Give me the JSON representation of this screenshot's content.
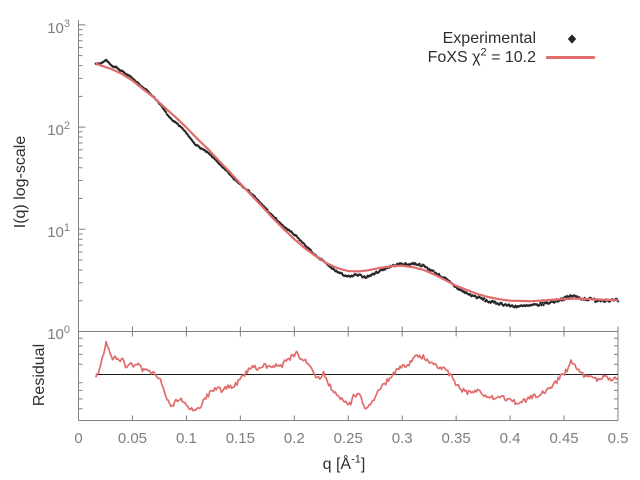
{
  "figure": {
    "background": "#ffffff",
    "main_axis": {
      "ylabel": "I(q) log-scale",
      "y_ticks": [
        {
          "base": "10",
          "exp": "3"
        },
        {
          "base": "10",
          "exp": "2"
        },
        {
          "base": "10",
          "exp": "1"
        },
        {
          "base": "10",
          "exp": "0"
        }
      ]
    },
    "residual_axis": {
      "ylabel": "Residual"
    },
    "x_axis": {
      "ticks": [
        "0",
        "0.05",
        "0.1",
        "0.15",
        "0.2",
        "0.25",
        "0.3",
        "0.35",
        "0.4",
        "0.45",
        "0.5"
      ],
      "title_pre": "q [Å",
      "title_sup": "-1",
      "title_post": "]"
    },
    "legend": {
      "experimental_label": "Experimental",
      "foxs_label_pre": "FoXS χ",
      "foxs_label_sup": "2",
      "foxs_label_post": " = 10.2"
    },
    "colors": {
      "fit_line": "#e06c6c",
      "experimental_points": "#262626",
      "axis": "#808080",
      "tick_labels": "#7d7d7d",
      "titles": "#2f2f2f",
      "residual_center_line": "#1c1c1c"
    }
  },
  "chart_data": {
    "type": "line",
    "description": "SAXS profile: experimental scattering points with FoXS model fit (top, log10 intensity) and fit residual ratio (bottom panel)",
    "title": "",
    "xlabel": "q [Å⁻¹]",
    "ylabel": "I(q) log-scale",
    "ylabel_residual": "Residual",
    "x_range": [
      0,
      0.5
    ],
    "y_range_main": [
      1,
      1000
    ],
    "y_scale_main": "log",
    "residual_range": [
      0.5,
      2
    ],
    "residual_scale": "log",
    "residual_center_value": 1,
    "legend_position": "top-right",
    "grid": false,
    "chi_squared": 10.2,
    "q_min_data": 0.016,
    "series": [
      {
        "name": "Experimental",
        "style": "points",
        "marker": "diamond",
        "color": "#262626"
      },
      {
        "name": "FoXS χ² = 10.2",
        "style": "line",
        "color": "#e06c6c"
      }
    ],
    "foxs_fit": {
      "q": [
        0.016,
        0.02,
        0.03,
        0.04,
        0.05,
        0.06,
        0.07,
        0.08,
        0.09,
        0.1,
        0.11,
        0.12,
        0.13,
        0.14,
        0.15,
        0.16,
        0.17,
        0.18,
        0.19,
        0.2,
        0.21,
        0.22,
        0.23,
        0.24,
        0.25,
        0.26,
        0.27,
        0.28,
        0.29,
        0.3,
        0.31,
        0.32,
        0.33,
        0.34,
        0.35,
        0.36,
        0.37,
        0.38,
        0.39,
        0.4,
        0.42,
        0.44,
        0.46,
        0.48,
        0.5
      ],
      "I": [
        420,
        403,
        372,
        333,
        285,
        235,
        194,
        155,
        125,
        99,
        77,
        61,
        47,
        36.5,
        28,
        21.7,
        16.8,
        12.9,
        10.1,
        8.0,
        6.5,
        5.45,
        4.65,
        4.17,
        3.9,
        3.87,
        4.0,
        4.2,
        4.35,
        4.4,
        4.26,
        4.0,
        3.6,
        3.18,
        2.8,
        2.55,
        2.32,
        2.17,
        2.07,
        2.0,
        1.98,
        2.05,
        2.1,
        2.06,
        2.02
      ]
    },
    "residual_ratio": {
      "q": [
        0.016,
        0.019,
        0.022,
        0.026,
        0.029,
        0.032,
        0.035,
        0.038,
        0.041,
        0.044,
        0.047,
        0.051,
        0.055,
        0.059,
        0.063,
        0.068,
        0.072,
        0.076,
        0.08,
        0.084,
        0.087,
        0.091,
        0.095,
        0.099,
        0.104,
        0.108,
        0.113,
        0.118,
        0.123,
        0.128,
        0.133,
        0.138,
        0.143,
        0.148,
        0.153,
        0.158,
        0.163,
        0.168,
        0.173,
        0.178,
        0.183,
        0.188,
        0.193,
        0.198,
        0.202,
        0.207,
        0.212,
        0.217,
        0.222,
        0.227,
        0.232,
        0.237,
        0.242,
        0.247,
        0.252,
        0.256,
        0.261,
        0.266,
        0.271,
        0.277,
        0.283,
        0.289,
        0.295,
        0.3,
        0.305,
        0.31,
        0.315,
        0.321,
        0.33,
        0.34,
        0.345,
        0.354,
        0.363,
        0.372,
        0.381,
        0.391,
        0.4,
        0.409,
        0.419,
        0.428,
        0.437,
        0.442,
        0.447,
        0.452,
        0.457,
        0.463,
        0.469,
        0.474,
        0.479,
        0.484,
        0.489,
        0.494,
        0.5
      ],
      "R": [
        1.0,
        1.06,
        1.3,
        1.75,
        1.4,
        1.28,
        1.36,
        1.22,
        1.3,
        1.16,
        1.25,
        1.14,
        1.2,
        1.1,
        1.14,
        1.05,
        1.0,
        0.92,
        0.78,
        0.66,
        0.62,
        0.68,
        0.71,
        0.66,
        0.6,
        0.57,
        0.63,
        0.72,
        0.78,
        0.84,
        0.79,
        0.86,
        0.82,
        0.92,
        1.0,
        1.1,
        1.16,
        1.11,
        1.18,
        1.13,
        1.21,
        1.16,
        1.28,
        1.35,
        1.42,
        1.32,
        1.24,
        1.1,
        0.96,
        1.04,
        0.87,
        0.79,
        0.72,
        0.68,
        0.65,
        0.76,
        0.73,
        0.61,
        0.66,
        0.76,
        0.87,
        0.99,
        1.09,
        1.18,
        1.14,
        1.32,
        1.38,
        1.33,
        1.19,
        1.11,
        1.0,
        0.81,
        0.76,
        0.79,
        0.71,
        0.73,
        0.68,
        0.66,
        0.71,
        0.75,
        0.83,
        0.89,
        1.0,
        1.08,
        1.27,
        1.09,
        1.01,
        0.99,
        0.94,
        0.96,
        0.99,
        0.96,
        0.97
      ]
    }
  }
}
